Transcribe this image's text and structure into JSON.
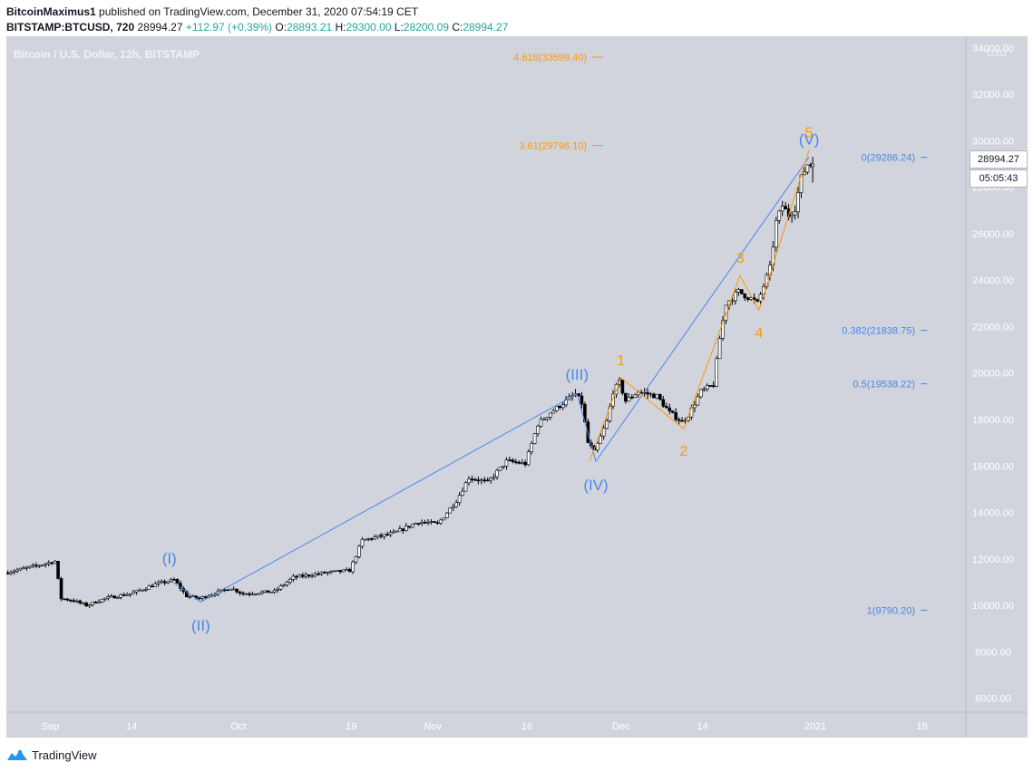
{
  "header": {
    "author": "BitcoinMaximus1",
    "published": "published on TradingView.com, December 31, 2020 07:54:19 CET",
    "symbol": "BITSTAMP:BTCUSD, 720",
    "last": "28994.27",
    "change": "+112.97 (+0.39%)",
    "o_label": "O:",
    "o_value": "28893.21",
    "h_label": "H:",
    "h_value": "29300.00",
    "l_label": "L:",
    "l_value": "28200.09",
    "c_label": "C:",
    "c_value": "28994.27"
  },
  "chart_title": "Bitcoin / U.S. Dollar, 12h, BITSTAMP",
  "axis_unit": "USD",
  "price_tag": "28994.27",
  "timer_tag": "05:05:43",
  "footer": {
    "brand": "TradingView"
  },
  "colors": {
    "background": "#d1d4dc",
    "axis_background": "#ffffff",
    "candle": "#000000",
    "wave_blue": "#4a86e8",
    "wave_orange": "#ff9800",
    "fib_blue": "#4a86e8",
    "fib_orange": "#ff9800"
  },
  "chart_data": {
    "type": "candlestick",
    "interval": "12h",
    "xlabel": "",
    "ylabel": "USD",
    "ylim": [
      5400,
      34500
    ],
    "y_ticks": [
      6000,
      8000,
      10000,
      12000,
      14000,
      16000,
      18000,
      20000,
      22000,
      24000,
      26000,
      28000,
      30000,
      32000,
      34000
    ],
    "y_tick_labels": [
      "6000.00",
      "8000.00",
      "10000.00",
      "12000.00",
      "14000.00",
      "16000.00",
      "18000.00",
      "20000.00",
      "22000.00",
      "24000.00",
      "26000.00",
      "28000.00",
      "30000.00",
      "32000.00",
      "34000.00"
    ],
    "x_start": "2020-08-25",
    "x_end": "2021-01-25",
    "x_ticks": [
      {
        "date": "2020-09-01",
        "label": "Sep"
      },
      {
        "date": "2020-09-14",
        "label": "14"
      },
      {
        "date": "2020-10-01",
        "label": "Oct"
      },
      {
        "date": "2020-10-19",
        "label": "19"
      },
      {
        "date": "2020-11-01",
        "label": "Nov"
      },
      {
        "date": "2020-11-16",
        "label": "16"
      },
      {
        "date": "2020-12-01",
        "label": "Dec"
      },
      {
        "date": "2020-12-14",
        "label": "14"
      },
      {
        "date": "2021-01-01",
        "label": "2021"
      },
      {
        "date": "2021-01-18",
        "label": "18"
      }
    ],
    "price_path": [
      [
        "2020-08-25",
        11400
      ],
      [
        "2020-08-30",
        11700
      ],
      [
        "2020-09-02",
        11900
      ],
      [
        "2020-09-03",
        10300
      ],
      [
        "2020-09-05",
        10200
      ],
      [
        "2020-09-07",
        10000
      ],
      [
        "2020-09-10",
        10300
      ],
      [
        "2020-09-14",
        10500
      ],
      [
        "2020-09-18",
        10900
      ],
      [
        "2020-09-21",
        11100
      ],
      [
        "2020-09-23",
        10400
      ],
      [
        "2020-09-25",
        10300
      ],
      [
        "2020-09-30",
        10750
      ],
      [
        "2020-10-02",
        10500
      ],
      [
        "2020-10-07",
        10600
      ],
      [
        "2020-10-10",
        11200
      ],
      [
        "2020-10-15",
        11400
      ],
      [
        "2020-10-19",
        11500
      ],
      [
        "2020-10-21",
        12800
      ],
      [
        "2020-10-26",
        13100
      ],
      [
        "2020-10-30",
        13600
      ],
      [
        "2020-11-02",
        13500
      ],
      [
        "2020-11-05",
        14500
      ],
      [
        "2020-11-07",
        15500
      ],
      [
        "2020-11-10",
        15300
      ],
      [
        "2020-11-13",
        16200
      ],
      [
        "2020-11-16",
        16100
      ],
      [
        "2020-11-18",
        17800
      ],
      [
        "2020-11-20",
        18300
      ],
      [
        "2020-11-22",
        18700
      ],
      [
        "2020-11-24",
        19100
      ],
      [
        "2020-11-25",
        18700
      ],
      [
        "2020-11-26",
        17000
      ],
      [
        "2020-11-27",
        16600
      ],
      [
        "2020-11-29",
        17900
      ],
      [
        "2020-11-30",
        19200
      ],
      [
        "2020-12-01",
        19600
      ],
      [
        "2020-12-02",
        18800
      ],
      [
        "2020-12-04",
        19200
      ],
      [
        "2020-12-07",
        19000
      ],
      [
        "2020-12-09",
        18300
      ],
      [
        "2020-12-11",
        17900
      ],
      [
        "2020-12-12",
        18200
      ],
      [
        "2020-12-14",
        19200
      ],
      [
        "2020-12-16",
        19500
      ],
      [
        "2020-12-17",
        21500
      ],
      [
        "2020-12-18",
        23000
      ],
      [
        "2020-12-20",
        23500
      ],
      [
        "2020-12-22",
        23200
      ],
      [
        "2020-12-23",
        23000
      ],
      [
        "2020-12-25",
        24500
      ],
      [
        "2020-12-26",
        26500
      ],
      [
        "2020-12-27",
        27200
      ],
      [
        "2020-12-28",
        26800
      ],
      [
        "2020-12-29",
        27100
      ],
      [
        "2020-12-30",
        28400
      ],
      [
        "2020-12-31",
        28994
      ]
    ],
    "last_bar": {
      "open": 28893.21,
      "high": 29300.0,
      "low": 28200.09,
      "close": 28994.27
    },
    "blue_waves": {
      "points": [
        {
          "label": "(I)",
          "date": "2020-09-20",
          "price": 11100
        },
        {
          "label": "(II)",
          "date": "2020-09-25",
          "price": 10150
        },
        {
          "label": "(III)",
          "date": "2020-11-24",
          "price": 19100
        },
        {
          "label": "(IV)",
          "date": "2020-11-27",
          "price": 16200
        },
        {
          "label": "(V)",
          "date": "2020-12-31",
          "price": 29300
        }
      ]
    },
    "orange_waves": {
      "points": [
        {
          "label": "",
          "date": "2020-11-26",
          "price": 16200
        },
        {
          "label": "1",
          "date": "2020-12-01",
          "price": 19800
        },
        {
          "label": "2",
          "date": "2020-12-11",
          "price": 17600
        },
        {
          "label": "3",
          "date": "2020-12-20",
          "price": 24200
        },
        {
          "label": "4",
          "date": "2020-12-23",
          "price": 22700
        },
        {
          "label": "5",
          "date": "2020-12-31",
          "price": 29600
        }
      ]
    },
    "fib_levels_orange": [
      {
        "label": "4.618(33599.40)",
        "price": 33599.4
      },
      {
        "label": "3.61(29796.10)",
        "price": 29796.1
      }
    ],
    "fib_levels_blue": [
      {
        "label": "0(29286.24)",
        "price": 29286.24
      },
      {
        "label": "0.382(21838.75)",
        "price": 21838.75
      },
      {
        "label": "0.5(19538.22)",
        "price": 19538.22
      },
      {
        "label": "1(9790.20)",
        "price": 9790.2
      }
    ]
  }
}
